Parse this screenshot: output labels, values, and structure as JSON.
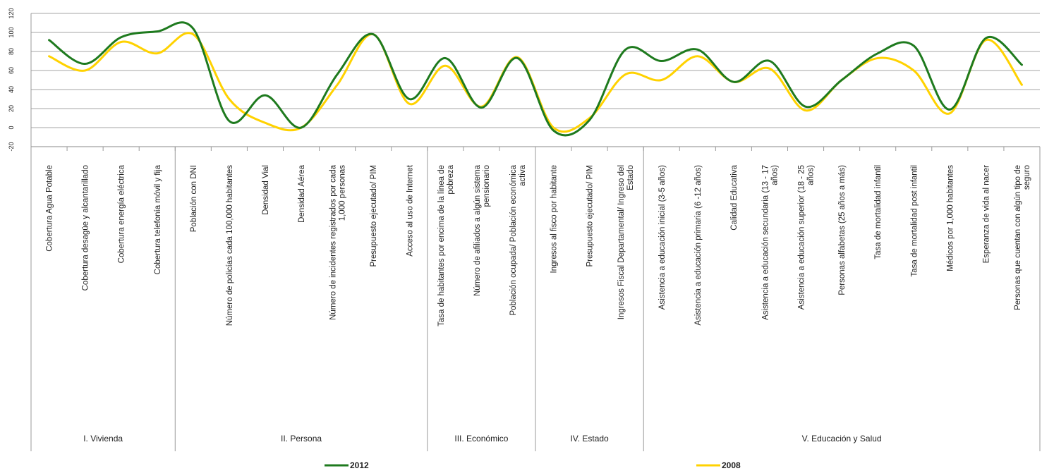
{
  "chart_data": {
    "type": "line",
    "title": "",
    "xlabel": "",
    "ylabel": "",
    "ylim": [
      -20,
      120
    ],
    "yticks": [
      -20,
      0,
      20,
      40,
      60,
      80,
      100,
      120
    ],
    "grid": true,
    "legend_position": "bottom",
    "categories": [
      "Cobertura Agua Potable",
      "Cobertura desagüe y alcantarillado",
      "Cobertura energía eléctrica",
      "Cobertura telefonía móvil y fija",
      "Población con DNI",
      "Número de policías cada 100,000 habitantes",
      "Densidad Vial",
      "Densidad Aérea",
      "Número de incidentes registrados por cada 1,000 personas",
      "Presupuesto ejecutado/ PIM",
      "Acceso al uso de Internet",
      "Tasa de habitantes por encima de la línea de pobreza",
      "Número de afiliados a algún sistema pensionario",
      "Población ocupada/ Población económica activa",
      "Ingresos al fisco por habitante",
      "Presupuesto ejecutado/ PIM",
      "Ingresos Fiscal Departamental/ Ingreso del Estado",
      "Asistencia a educación inicial (3-5 años)",
      "Asistencia a educación primaria (6 -12 años)",
      "Calidad Educativa",
      "Asistencia a educación secundaria (13 - 17 años)",
      "Asistencia a educación superior (18 - 25 años)",
      "Personas alfabetas (25 años a más)",
      "Tasa de mortalidad infantil",
      "Tasa de mortalidad post infantil",
      "Médicos por 1,000 habitantes",
      "Esperanza de vida al nacer",
      "Personas que cuentan con algún tipo de seguro"
    ],
    "groups": [
      {
        "label": "I. Vivienda",
        "count": 4
      },
      {
        "label": "II. Persona",
        "count": 7
      },
      {
        "label": "III. Económico",
        "count": 3
      },
      {
        "label": "IV. Estado",
        "count": 3
      },
      {
        "label": "V. Educación y Salud",
        "count": 11
      }
    ],
    "series": [
      {
        "name": "2012",
        "color": "#1e7a1e",
        "values": [
          92,
          67,
          95,
          101,
          104,
          7,
          34,
          0,
          56,
          98,
          30,
          73,
          21,
          73,
          -3,
          8,
          82,
          70,
          82,
          48,
          70,
          22,
          50,
          78,
          86,
          19,
          94,
          66
        ]
      },
      {
        "name": "2008",
        "color": "#ffd200",
        "values": [
          75,
          60,
          90,
          78,
          98,
          30,
          5,
          0,
          45,
          98,
          25,
          65,
          22,
          74,
          0,
          10,
          56,
          50,
          75,
          48,
          62,
          18,
          50,
          73,
          60,
          15,
          92,
          45
        ]
      }
    ]
  }
}
